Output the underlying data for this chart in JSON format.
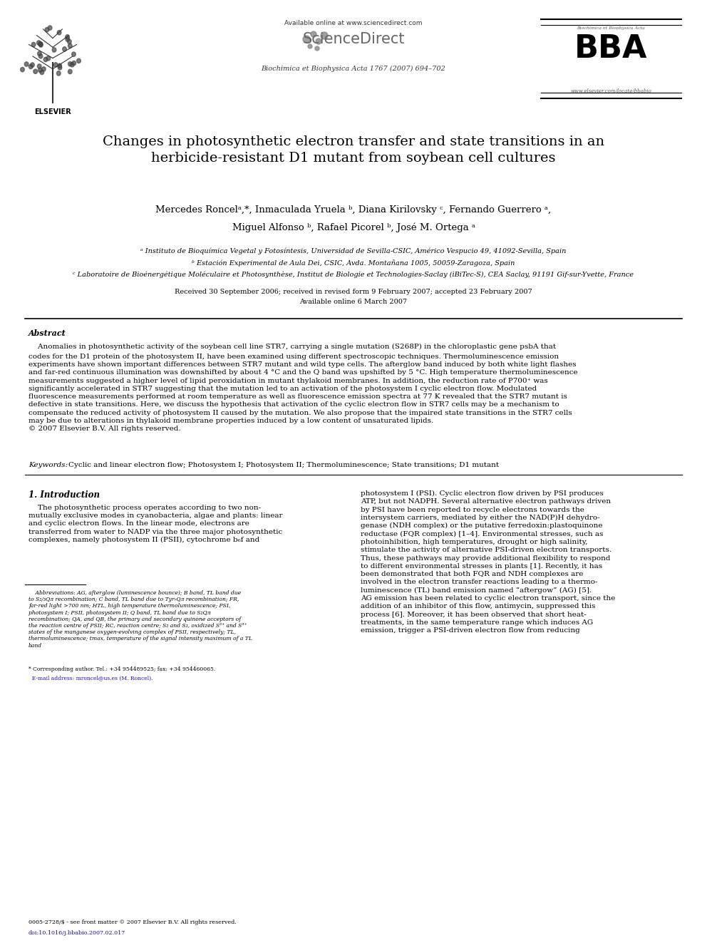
{
  "page_width": 9.92,
  "page_height": 13.23,
  "dpi": 100,
  "background_color": "#ffffff",
  "top_bar": {
    "available_online": "Available online at www.sciencedirect.com",
    "sciencedirect_text": "ScienceDirect",
    "journal_line": "Biochimica et Biophysica Acta 1767 (2007) 694–702",
    "bba_small": "Biochimica et Biophysica Acta",
    "bba_big": "BBA",
    "bba_url": "www.elsevier.com/locate/bbabio"
  },
  "title": "Changes in photosynthetic electron transfer and state transitions in an\nherbicide-resistant D1 mutant from soybean cell cultures",
  "authors_line1": "Mercedes Roncelᵃ,*, Inmaculada Yruela ᵇ, Diana Kirilovsky ᶜ, Fernando Guerrero ᵃ,",
  "authors_line2": "Miguel Alfonso ᵇ, Rafael Picorel ᵇ, José M. Ortega ᵃ",
  "affil_a": "ᵃ Instituto de Bioquímica Vegetal y Fotosíntesis, Universidad de Sevilla-CSIC, Américo Vespucio 49, 41092-Sevilla, Spain",
  "affil_b": "ᵇ Estación Experimental de Aula Dei, CSIC, Avda. Montañana 1005, 50059-Zaragoza, Spain",
  "affil_c": "ᶜ Laboratoire de Bioénergétique Moléculaire et Photosynthèse, Institut de Biologie et Technologies-Saclay (iBiTec-S), CEA Saclay, 91191 Gif-sur-Yvette, France",
  "received_line": "Received 30 September 2006; received in revised form 9 February 2007; accepted 23 February 2007",
  "available_line": "Available online 6 March 2007",
  "abstract_heading": "Abstract",
  "abstract_indent": "    Anomalies in photosynthetic activity of the soybean cell line STR7, carrying a single mutation (S268P) in the chloroplastic gene psbA that",
  "abstract_body": "codes for the D1 protein of the photosystem II, have been examined using different spectroscopic techniques. Thermoluminescence emission\nexperiments have shown important differences between STR7 mutant and wild type cells. The afterglow band induced by both white light flashes\nand far-red continuous illumination was downshifted by about 4 °C and the Q band was upshifted by 5 °C. High temperature thermoluminescence\nmeasurements suggested a higher level of lipid peroxidation in mutant thylakoid membranes. In addition, the reduction rate of P700⁺ was\nsignificantly accelerated in STR7 suggesting that the mutation led to an activation of the photosystem I cyclic electron flow. Modulated\nfluorescence measurements performed at room temperature as well as fluorescence emission spectra at 77 K revealed that the STR7 mutant is\ndefective in state transitions. Here, we discuss the hypothesis that activation of the cyclic electron flow in STR7 cells may be a mechanism to\ncompensate the reduced activity of photosystem II caused by the mutation. We also propose that the impaired state transitions in the STR7 cells\nmay be due to alterations in thylakoid membrane properties induced by a low content of unsaturated lipids.\n© 2007 Elsevier B.V. All rights reserved.",
  "keywords_italic": "Keywords: ",
  "keywords_plain": "Cyclic and linear electron flow; Photosystem I; Photosystem II; Thermoluminescence; State transitions; D1 mutant",
  "section1_heading": "1. Introduction",
  "section1_left_p1": "    The photosynthetic process operates according to two non-\nmutually exclusive modes in cyanobacteria, algae and plants: linear\nand cyclic electron flows. In the linear mode, electrons are\ntransferred from water to NADP via the three major photosynthetic\ncomplexes, namely photosystem II (PSII), cytochrome b₆f and",
  "section1_right": "photosystem I (PSI). Cyclic electron flow driven by PSI produces\nATP, but not NADPH. Several alternative electron pathways driven\nby PSI have been reported to recycle electrons towards the\nintersystem carriers, mediated by either the NAD(P)H dehydro-\ngenase (NDH complex) or the putative ferredoxin:plastoquinone\nreductase (FQR complex) [1–4]. Environmental stresses, such as\nphotoinhibition, high temperatures, drought or high salinity,\nstimulate the activity of alternative PSI-driven electron transports.\nThus, these pathways may provide additional flexibility to respond\nto different environmental stresses in plants [1]. Recently, it has\nbeen demonstrated that both FQR and NDH complexes are\ninvolved in the electron transfer reactions leading to a thermo-\nluminescence (TL) band emission named “aftergow” (AG) [5].\nAG emission has been related to cyclic electron transport, since the\naddition of an inhibitor of this flow, antimycin, suppressed this\nprocess [6]. Moreover, it has been observed that short heat-\ntreatments, in the same temperature range which induces AG\nemission, trigger a PSI-driven electron flow from reducing",
  "footnote_abbrev": "    Abbreviations: AG, afterglow (luminescence bounce); B band, TL band due\nto S₂/₃Qᴫ recombination; C band, TL band due to TyrᵣQᴫ recombination; FR,\nfar-red light >700 nm; HTL, high temperature thermoluminescence; PSI,\nphotosystem I; PSII, photosystem II; Q band, TL band due to S₂Qᴫ\nrecombination; QA, and QB, the primary and secondary quinone acceptors of\nthe reaction centre of PSII; RC, reaction centre; S₂ and S₃, oxidized S²⁺ and S³⁺\nstates of the manganese oxygen-evolving complex of PSII, respectively; TL,\nthermoluminescence; tmax, temperature of the signal intensity maximum of a TL\nband",
  "footnote_star": "* Corresponding author. Tel.: +34 954489525; fax: +34 954460065.",
  "footnote_email": "  E-mail address: mroncel@us.es (M. Roncel).",
  "footer_left1": "0005-2728/$ - see front matter © 2007 Elsevier B.V. All rights reserved.",
  "footer_left2": "doi:10.1016/j.bbabio.2007.02.017",
  "text_color": "#000000",
  "link_color": "#1a0dab"
}
